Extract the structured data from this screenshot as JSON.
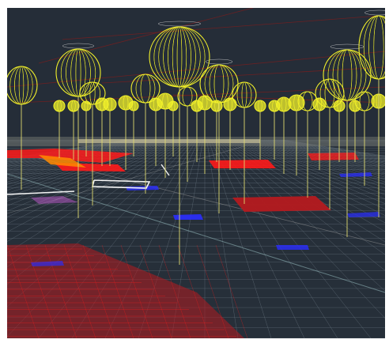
{
  "viewport": {
    "kind": "3d-wireframe-scene",
    "background_color": "#252d38",
    "has_visible_text": false
  },
  "scene": {
    "colors": {
      "ground_grid": "#6d7a86",
      "ground_grid_far": "#8f98a0",
      "red_zone": "#ff1a1a",
      "red_zone_dark": "#b41a1f",
      "blue_zone": "#2a2dff",
      "white_zone": "#f3f3f3",
      "orange_zone": "#ff8a00",
      "tree_canopy": "#f2f12a",
      "tree_trunk": "#ddd86f",
      "upper_lines": "#7d1d1d"
    },
    "features": [
      "perspective-grid",
      "red-zones",
      "blue-zones",
      "white-outlines",
      "orange-zone",
      "wireframe-trees",
      "upper-line-network"
    ]
  }
}
